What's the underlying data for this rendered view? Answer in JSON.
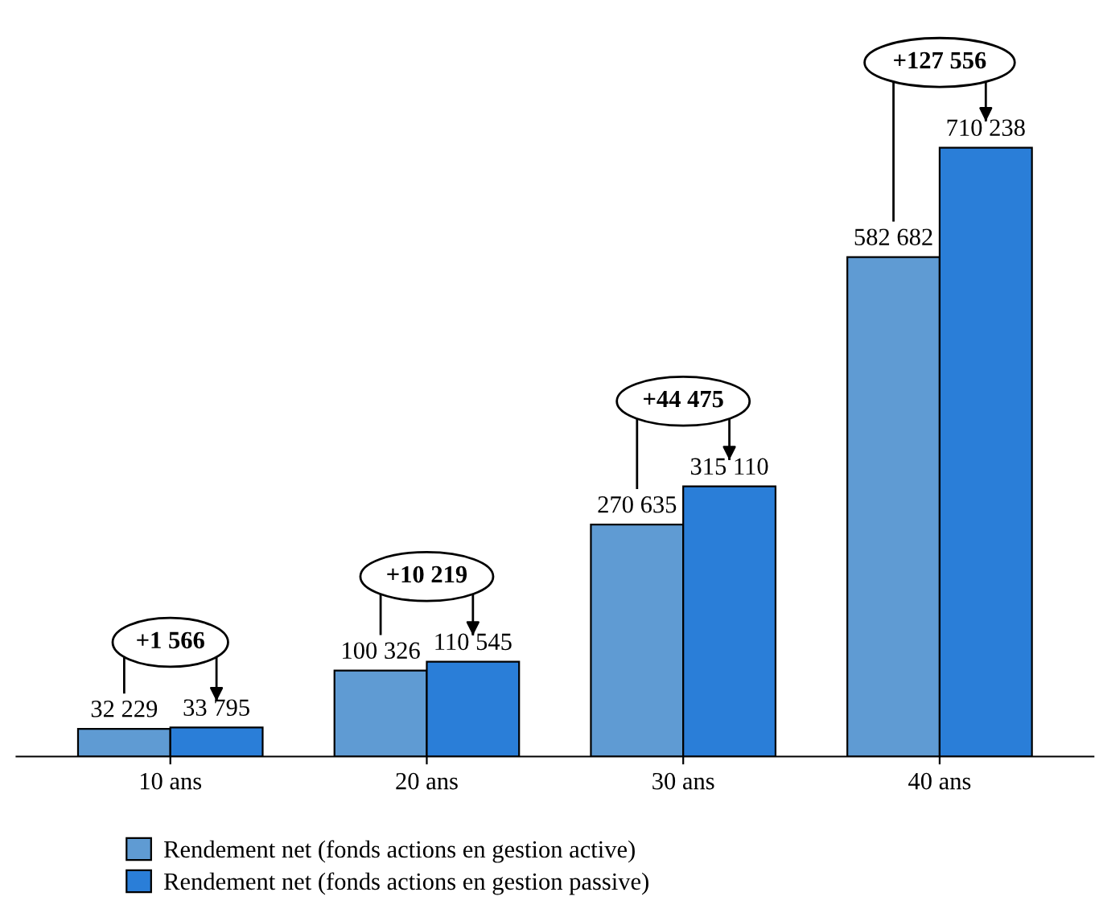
{
  "chart_data": {
    "type": "bar",
    "categories": [
      "10 ans",
      "20 ans",
      "30 ans",
      "40 ans"
    ],
    "series": [
      {
        "name": "Rendement net (fonds actions en gestion active)",
        "color": "#5f9bd3",
        "values": [
          32229,
          100326,
          270635,
          582682
        ],
        "value_labels": [
          "32 229",
          "100 326",
          "270 635",
          "582 682"
        ]
      },
      {
        "name": "Rendement net (fonds actions en gestion passive)",
        "color": "#2a7ed8",
        "values": [
          33795,
          110545,
          315110,
          710238
        ],
        "value_labels": [
          "33 795",
          "110 545",
          "315 110",
          "710 238"
        ]
      }
    ],
    "annotations": [
      "+1 566",
      "+10 219",
      "+44 475",
      "+127 556"
    ],
    "legend": "bottom",
    "grid": false
  }
}
